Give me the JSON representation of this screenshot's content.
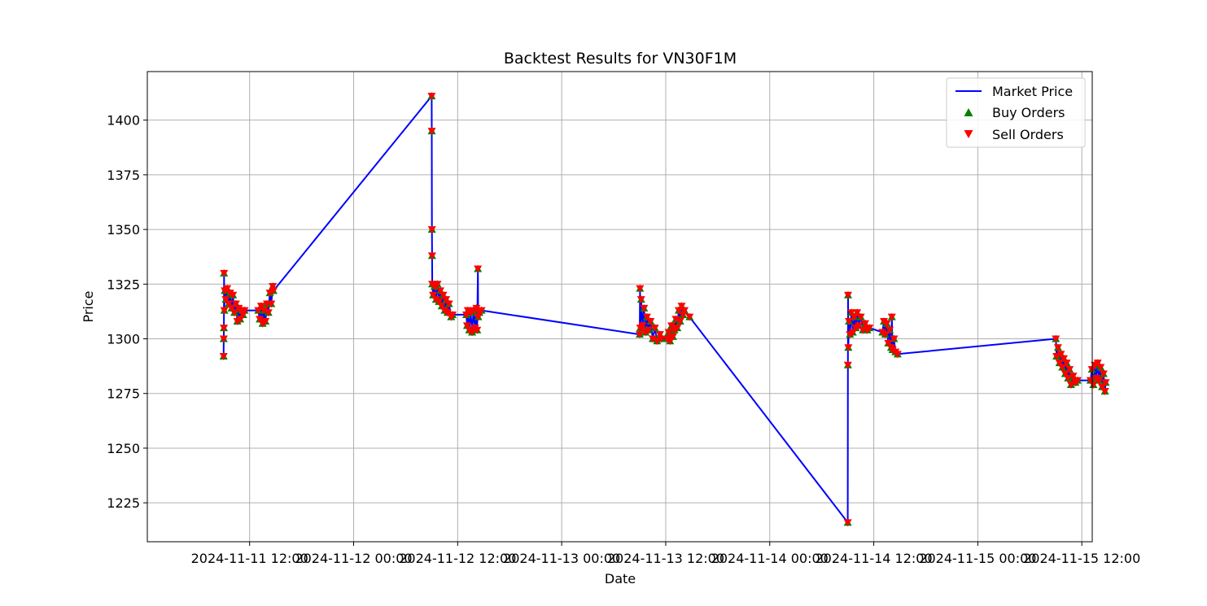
{
  "chart_data": {
    "type": "line",
    "title": "Backtest Results for VN30F1M",
    "xlabel": "Date",
    "ylabel": "Price",
    "xlim": [
      "2024-11-11 00:12",
      "2024-11-15 13:12"
    ],
    "ylim": [
      1207.2,
      1422.2
    ],
    "grid": true,
    "legend_position": "top-right",
    "x_ticks": [
      "2024-11-11 12:00",
      "2024-11-12 00:00",
      "2024-11-12 12:00",
      "2024-11-13 00:00",
      "2024-11-13 12:00",
      "2024-11-14 00:00",
      "2024-11-14 12:00",
      "2024-11-15 00:00",
      "2024-11-15 12:00"
    ],
    "y_ticks": [
      1225,
      1250,
      1275,
      1300,
      1325,
      1350,
      1375,
      1400
    ],
    "colors": {
      "market": "#0000ff",
      "buy": "#008000",
      "sell": "#ff0000",
      "grid": "#b0b0b0"
    },
    "series": [
      {
        "name": "Market Price",
        "kind": "line",
        "points": [
          [
            "2024-11-11 09:00",
            1292
          ],
          [
            "2024-11-11 09:01",
            1300
          ],
          [
            "2024-11-11 09:02",
            1305
          ],
          [
            "2024-11-11 09:03",
            1330
          ],
          [
            "2024-11-11 09:05",
            1313
          ],
          [
            "2024-11-11 09:08",
            1322
          ],
          [
            "2024-11-11 09:15",
            1318
          ],
          [
            "2024-11-11 09:25",
            1323
          ],
          [
            "2024-11-11 09:35",
            1316
          ],
          [
            "2024-11-11 09:45",
            1321
          ],
          [
            "2024-11-11 09:55",
            1314
          ],
          [
            "2024-11-11 10:05",
            1320
          ],
          [
            "2024-11-11 10:15",
            1312
          ],
          [
            "2024-11-11 10:25",
            1316
          ],
          [
            "2024-11-11 10:35",
            1308
          ],
          [
            "2024-11-11 10:45",
            1314
          ],
          [
            "2024-11-11 10:55",
            1309
          ],
          [
            "2024-11-11 11:05",
            1313
          ],
          [
            "2024-11-11 11:15",
            1311
          ],
          [
            "2024-11-11 11:25",
            1313
          ],
          [
            "2024-11-11 13:00",
            1313
          ],
          [
            "2024-11-11 13:10",
            1309
          ],
          [
            "2024-11-11 13:20",
            1315
          ],
          [
            "2024-11-11 13:30",
            1307
          ],
          [
            "2024-11-11 13:40",
            1313
          ],
          [
            "2024-11-11 13:50",
            1308
          ],
          [
            "2024-11-11 14:00",
            1316
          ],
          [
            "2024-11-11 14:10",
            1312
          ],
          [
            "2024-11-11 14:20",
            1321
          ],
          [
            "2024-11-11 14:30",
            1316
          ],
          [
            "2024-11-11 14:40",
            1324
          ],
          [
            "2024-11-11 14:45",
            1322
          ],
          [
            "2024-11-12 09:00",
            1411
          ],
          [
            "2024-11-12 09:01",
            1395
          ],
          [
            "2024-11-12 09:02",
            1350
          ],
          [
            "2024-11-12 09:03",
            1338
          ],
          [
            "2024-11-12 09:04",
            1325
          ],
          [
            "2024-11-12 09:10",
            1320
          ],
          [
            "2024-11-12 09:20",
            1324
          ],
          [
            "2024-11-12 09:30",
            1318
          ],
          [
            "2024-11-12 09:40",
            1325
          ],
          [
            "2024-11-12 09:50",
            1317
          ],
          [
            "2024-11-12 10:00",
            1322
          ],
          [
            "2024-11-12 10:10",
            1315
          ],
          [
            "2024-11-12 10:20",
            1320
          ],
          [
            "2024-11-12 10:30",
            1313
          ],
          [
            "2024-11-12 10:40",
            1318
          ],
          [
            "2024-11-12 10:50",
            1312
          ],
          [
            "2024-11-12 11:00",
            1316
          ],
          [
            "2024-11-12 11:15",
            1310
          ],
          [
            "2024-11-12 11:25",
            1311
          ],
          [
            "2024-11-12 13:00",
            1311
          ],
          [
            "2024-11-12 13:05",
            1306
          ],
          [
            "2024-11-12 13:10",
            1313
          ],
          [
            "2024-11-12 13:20",
            1304
          ],
          [
            "2024-11-12 13:30",
            1312
          ],
          [
            "2024-11-12 13:40",
            1303
          ],
          [
            "2024-11-12 13:50",
            1313
          ],
          [
            "2024-11-12 14:00",
            1305
          ],
          [
            "2024-11-12 14:10",
            1314
          ],
          [
            "2024-11-12 14:15",
            1304
          ],
          [
            "2024-11-12 14:20",
            1332
          ],
          [
            "2024-11-12 14:22",
            1310
          ],
          [
            "2024-11-12 14:30",
            1312
          ],
          [
            "2024-11-12 14:45",
            1313
          ],
          [
            "2024-11-13 09:00",
            1302
          ],
          [
            "2024-11-13 09:02",
            1323
          ],
          [
            "2024-11-13 09:04",
            1305
          ],
          [
            "2024-11-13 09:10",
            1318
          ],
          [
            "2024-11-13 09:20",
            1306
          ],
          [
            "2024-11-13 09:30",
            1314
          ],
          [
            "2024-11-13 09:40",
            1303
          ],
          [
            "2024-11-13 09:50",
            1310
          ],
          [
            "2024-11-13 10:00",
            1304
          ],
          [
            "2024-11-13 10:15",
            1308
          ],
          [
            "2024-11-13 10:30",
            1300
          ],
          [
            "2024-11-13 10:45",
            1305
          ],
          [
            "2024-11-13 11:00",
            1299
          ],
          [
            "2024-11-13 11:20",
            1302
          ],
          [
            "2024-11-13 11:30",
            1300
          ],
          [
            "2024-11-13 12:10",
            1300
          ],
          [
            "2024-11-13 12:20",
            1303
          ],
          [
            "2024-11-13 12:30",
            1299
          ],
          [
            "2024-11-13 12:40",
            1306
          ],
          [
            "2024-11-13 12:50",
            1301
          ],
          [
            "2024-11-13 13:00",
            1304
          ],
          [
            "2024-11-13 13:10",
            1309
          ],
          [
            "2024-11-13 13:20",
            1305
          ],
          [
            "2024-11-13 13:30",
            1313
          ],
          [
            "2024-11-13 13:40",
            1308
          ],
          [
            "2024-11-13 13:50",
            1315
          ],
          [
            "2024-11-13 14:00",
            1311
          ],
          [
            "2024-11-13 14:10",
            1313
          ],
          [
            "2024-11-13 14:45",
            1310
          ],
          [
            "2024-11-14 09:00",
            1216
          ],
          [
            "2024-11-14 09:01",
            1288
          ],
          [
            "2024-11-14 09:02",
            1320
          ],
          [
            "2024-11-14 09:04",
            1296
          ],
          [
            "2024-11-14 09:08",
            1308
          ],
          [
            "2024-11-14 09:15",
            1302
          ],
          [
            "2024-11-14 09:25",
            1312
          ],
          [
            "2024-11-14 09:35",
            1303
          ],
          [
            "2024-11-14 09:45",
            1310
          ],
          [
            "2024-11-14 09:55",
            1305
          ],
          [
            "2024-11-14 10:05",
            1312
          ],
          [
            "2024-11-14 10:15",
            1306
          ],
          [
            "2024-11-14 10:30",
            1310
          ],
          [
            "2024-11-14 10:45",
            1304
          ],
          [
            "2024-11-14 11:00",
            1307
          ],
          [
            "2024-11-14 11:15",
            1304
          ],
          [
            "2024-11-14 11:30",
            1305
          ],
          [
            "2024-11-14 13:00",
            1303
          ],
          [
            "2024-11-14 13:10",
            1308
          ],
          [
            "2024-11-14 13:20",
            1302
          ],
          [
            "2024-11-14 13:30",
            1307
          ],
          [
            "2024-11-14 13:40",
            1298
          ],
          [
            "2024-11-14 13:50",
            1304
          ],
          [
            "2024-11-14 14:00",
            1296
          ],
          [
            "2024-11-14 14:05",
            1310
          ],
          [
            "2024-11-14 14:10",
            1295
          ],
          [
            "2024-11-14 14:20",
            1300
          ],
          [
            "2024-11-14 14:30",
            1294
          ],
          [
            "2024-11-14 14:45",
            1293
          ],
          [
            "2024-11-15 09:00",
            1300
          ],
          [
            "2024-11-15 09:05",
            1292
          ],
          [
            "2024-11-15 09:15",
            1296
          ],
          [
            "2024-11-15 09:25",
            1289
          ],
          [
            "2024-11-15 09:35",
            1293
          ],
          [
            "2024-11-15 09:45",
            1287
          ],
          [
            "2024-11-15 09:55",
            1291
          ],
          [
            "2024-11-15 10:05",
            1284
          ],
          [
            "2024-11-15 10:15",
            1289
          ],
          [
            "2024-11-15 10:25",
            1282
          ],
          [
            "2024-11-15 10:35",
            1286
          ],
          [
            "2024-11-15 10:45",
            1279
          ],
          [
            "2024-11-15 11:00",
            1283
          ],
          [
            "2024-11-15 11:15",
            1280
          ],
          [
            "2024-11-15 11:30",
            1281
          ],
          [
            "2024-11-15 13:00",
            1281
          ],
          [
            "2024-11-15 13:10",
            1286
          ],
          [
            "2024-11-15 13:20",
            1279
          ],
          [
            "2024-11-15 13:30",
            1288
          ],
          [
            "2024-11-15 13:40",
            1282
          ],
          [
            "2024-11-15 13:50",
            1289
          ],
          [
            "2024-11-15 14:00",
            1281
          ],
          [
            "2024-11-15 14:10",
            1287
          ],
          [
            "2024-11-15 14:20",
            1278
          ],
          [
            "2024-11-15 14:30",
            1284
          ],
          [
            "2024-11-15 14:40",
            1276
          ],
          [
            "2024-11-15 14:45",
            1280
          ]
        ]
      },
      {
        "name": "Buy Orders",
        "kind": "scatter-triangle-up"
      },
      {
        "name": "Sell Orders",
        "kind": "scatter-triangle-down"
      }
    ]
  }
}
